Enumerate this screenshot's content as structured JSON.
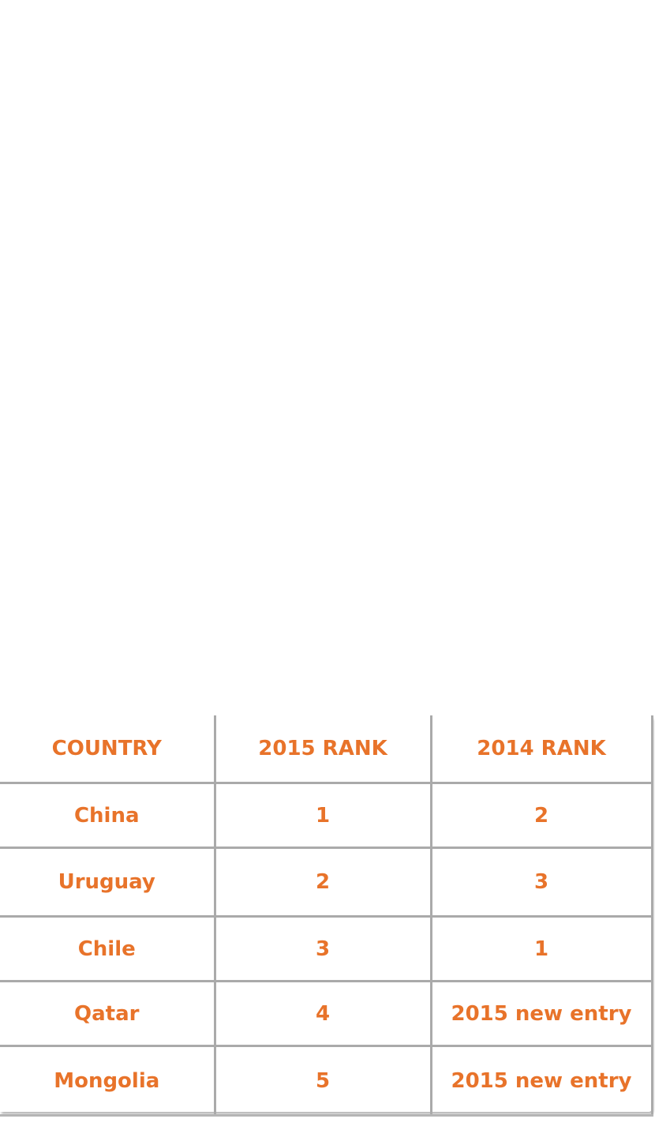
{
  "colors": {
    "text": "#e8732a",
    "rule": "#aaaaaa"
  },
  "chart_data": {
    "type": "table",
    "columns": [
      "COUNTRY",
      "2015 RANK",
      "2014 RANK"
    ],
    "rows": [
      [
        "China",
        "1",
        "2"
      ],
      [
        "Uruguay",
        "2",
        "3"
      ],
      [
        "Chile",
        "3",
        "1"
      ],
      [
        "Qatar",
        "4",
        "2015 new entry"
      ],
      [
        "Mongolia",
        "5",
        "2015 new entry"
      ]
    ]
  }
}
